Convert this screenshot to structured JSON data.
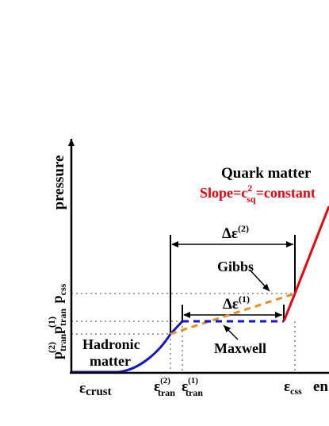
{
  "axes": {
    "y_label": "pressure",
    "x_label": "en"
  },
  "regions": {
    "quark_title": "Quark matter",
    "quark_slope": {
      "prefix": "Slope=c",
      "sup": "2",
      "sub": "sq",
      "suffix": "=constant"
    },
    "hadronic_line1": "Hadronic",
    "hadronic_line2": "matter"
  },
  "constructions": {
    "gibbs": "Gibbs",
    "maxwell": "Maxwell"
  },
  "intervals": {
    "delta2": {
      "base": "Δε",
      "sup": "(2)"
    },
    "delta1": {
      "base": "Δε",
      "sup": "(1)"
    }
  },
  "x_ticks": {
    "crust": {
      "base": "ε",
      "sub": "crust"
    },
    "tran2": {
      "base": "ε",
      "sup": "(2)",
      "sub": "tran"
    },
    "tran1": {
      "base": "ε",
      "sup": "(1)",
      "sub": "tran"
    },
    "css": {
      "base": "ε",
      "sub": "css"
    }
  },
  "y_ticks": {
    "tran2": {
      "base": "p",
      "sup": "(2)",
      "sub": "tran"
    },
    "tran1": {
      "base": "p",
      "sup": "(1)",
      "sub": "tran"
    },
    "css": {
      "base": "p",
      "sub": "css"
    }
  },
  "colors": {
    "axis": "#000000",
    "hadronic_curve": "#1414c8",
    "quark_line": "#e8000f",
    "gibbs_dash": "#f08c1e",
    "maxwell_dash": "#1414c8",
    "guide_dots": "#a0a0a0",
    "slope_text": "#e8000f"
  }
}
